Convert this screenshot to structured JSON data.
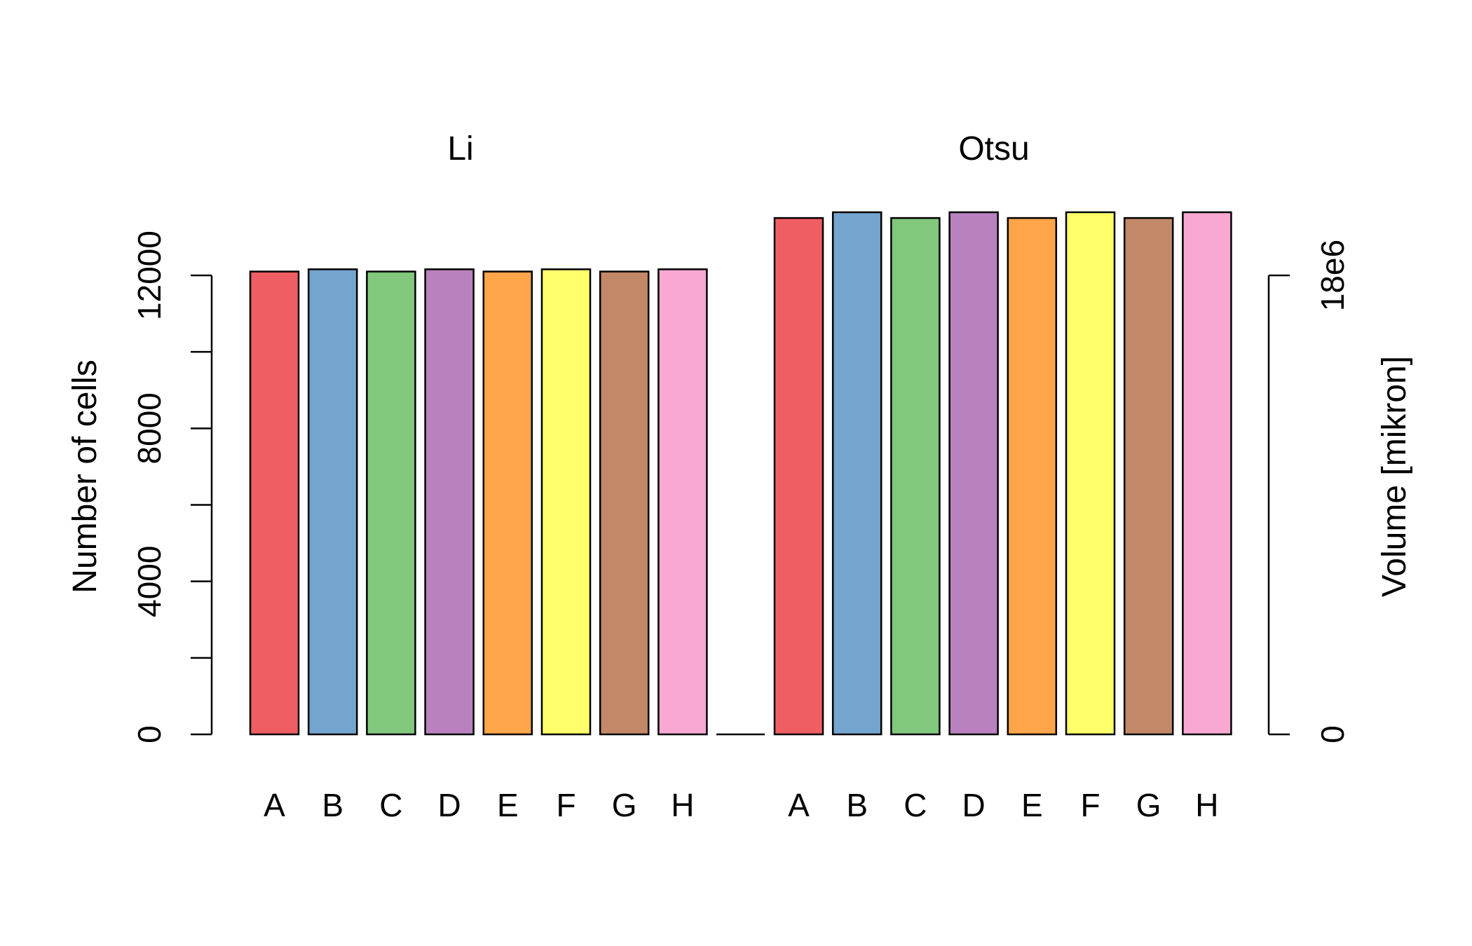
{
  "chart_data": {
    "type": "bar",
    "categories": [
      "A",
      "B",
      "C",
      "D",
      "E",
      "F",
      "G",
      "H"
    ],
    "groups": [
      {
        "title": "Li",
        "values": [
          12100,
          12160,
          12100,
          12160,
          12100,
          12160,
          12100,
          12160
        ]
      },
      {
        "title": "Otsu",
        "values": [
          13500,
          13650,
          13500,
          13650,
          13500,
          13650,
          13500,
          13650
        ]
      }
    ],
    "colors": [
      "#EE5E63",
      "#73A5CF",
      "#81C87D",
      "#B982BE",
      "#FFA54A",
      "#FFFF6C",
      "#C38868",
      "#F9A8D4"
    ],
    "ylabel": "Number of cells",
    "ylim": [
      0,
      13650
    ],
    "y_ticks": [
      0,
      2000,
      4000,
      6000,
      8000,
      10000,
      12000
    ],
    "y_tick_labels": [
      "0",
      "",
      "4000",
      "",
      "8000",
      "",
      "12000"
    ],
    "y2label": "Volume [mikron]",
    "y2_tick_labels": [
      "0",
      "18e6"
    ],
    "grid": false,
    "legend": "none"
  }
}
